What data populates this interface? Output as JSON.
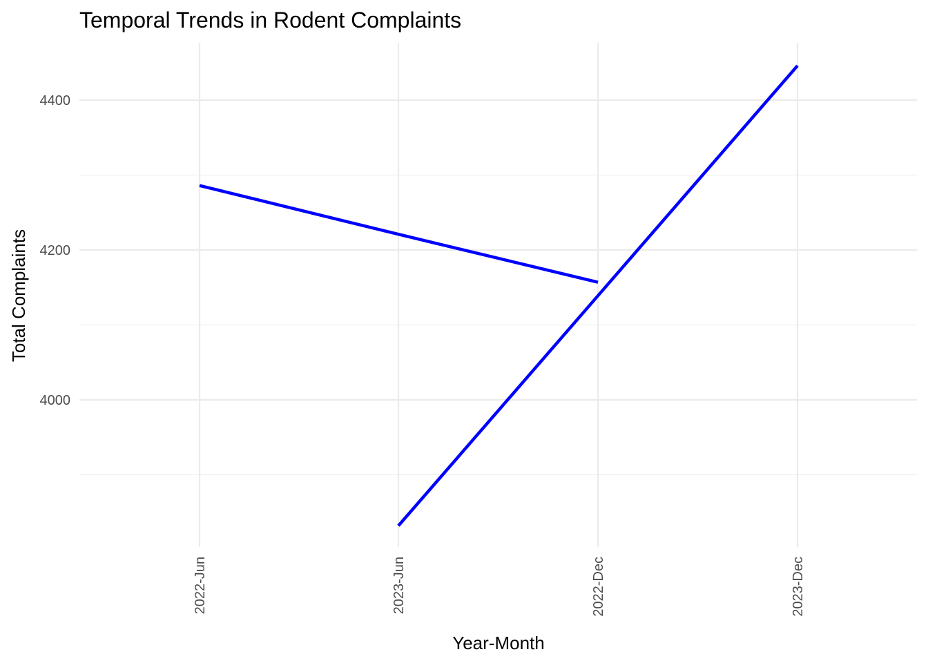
{
  "chart_data": {
    "type": "line",
    "title": "Temporal Trends in Rodent Complaints",
    "xlabel": "Year-Month",
    "ylabel": "Total Complaints",
    "categories": [
      "2022-Jun",
      "2023-Jun",
      "2022-Dec",
      "2023-Dec"
    ],
    "yticks": [
      4000,
      4200,
      4400
    ],
    "ylim": [
      3866,
      4475
    ],
    "grid": true,
    "legend": "none",
    "series": [
      {
        "color": "#0000ff",
        "segments": [
          [
            [
              "2022-Jun",
              4286
            ],
            [
              "2023-Jun",
              4221
            ],
            [
              "2022-Dec",
              4157
            ]
          ],
          [
            [
              "2023-Jun",
              3832
            ],
            [
              "2022-Dec",
              4139
            ],
            [
              "2023-Dec",
              4446
            ]
          ]
        ]
      }
    ]
  }
}
